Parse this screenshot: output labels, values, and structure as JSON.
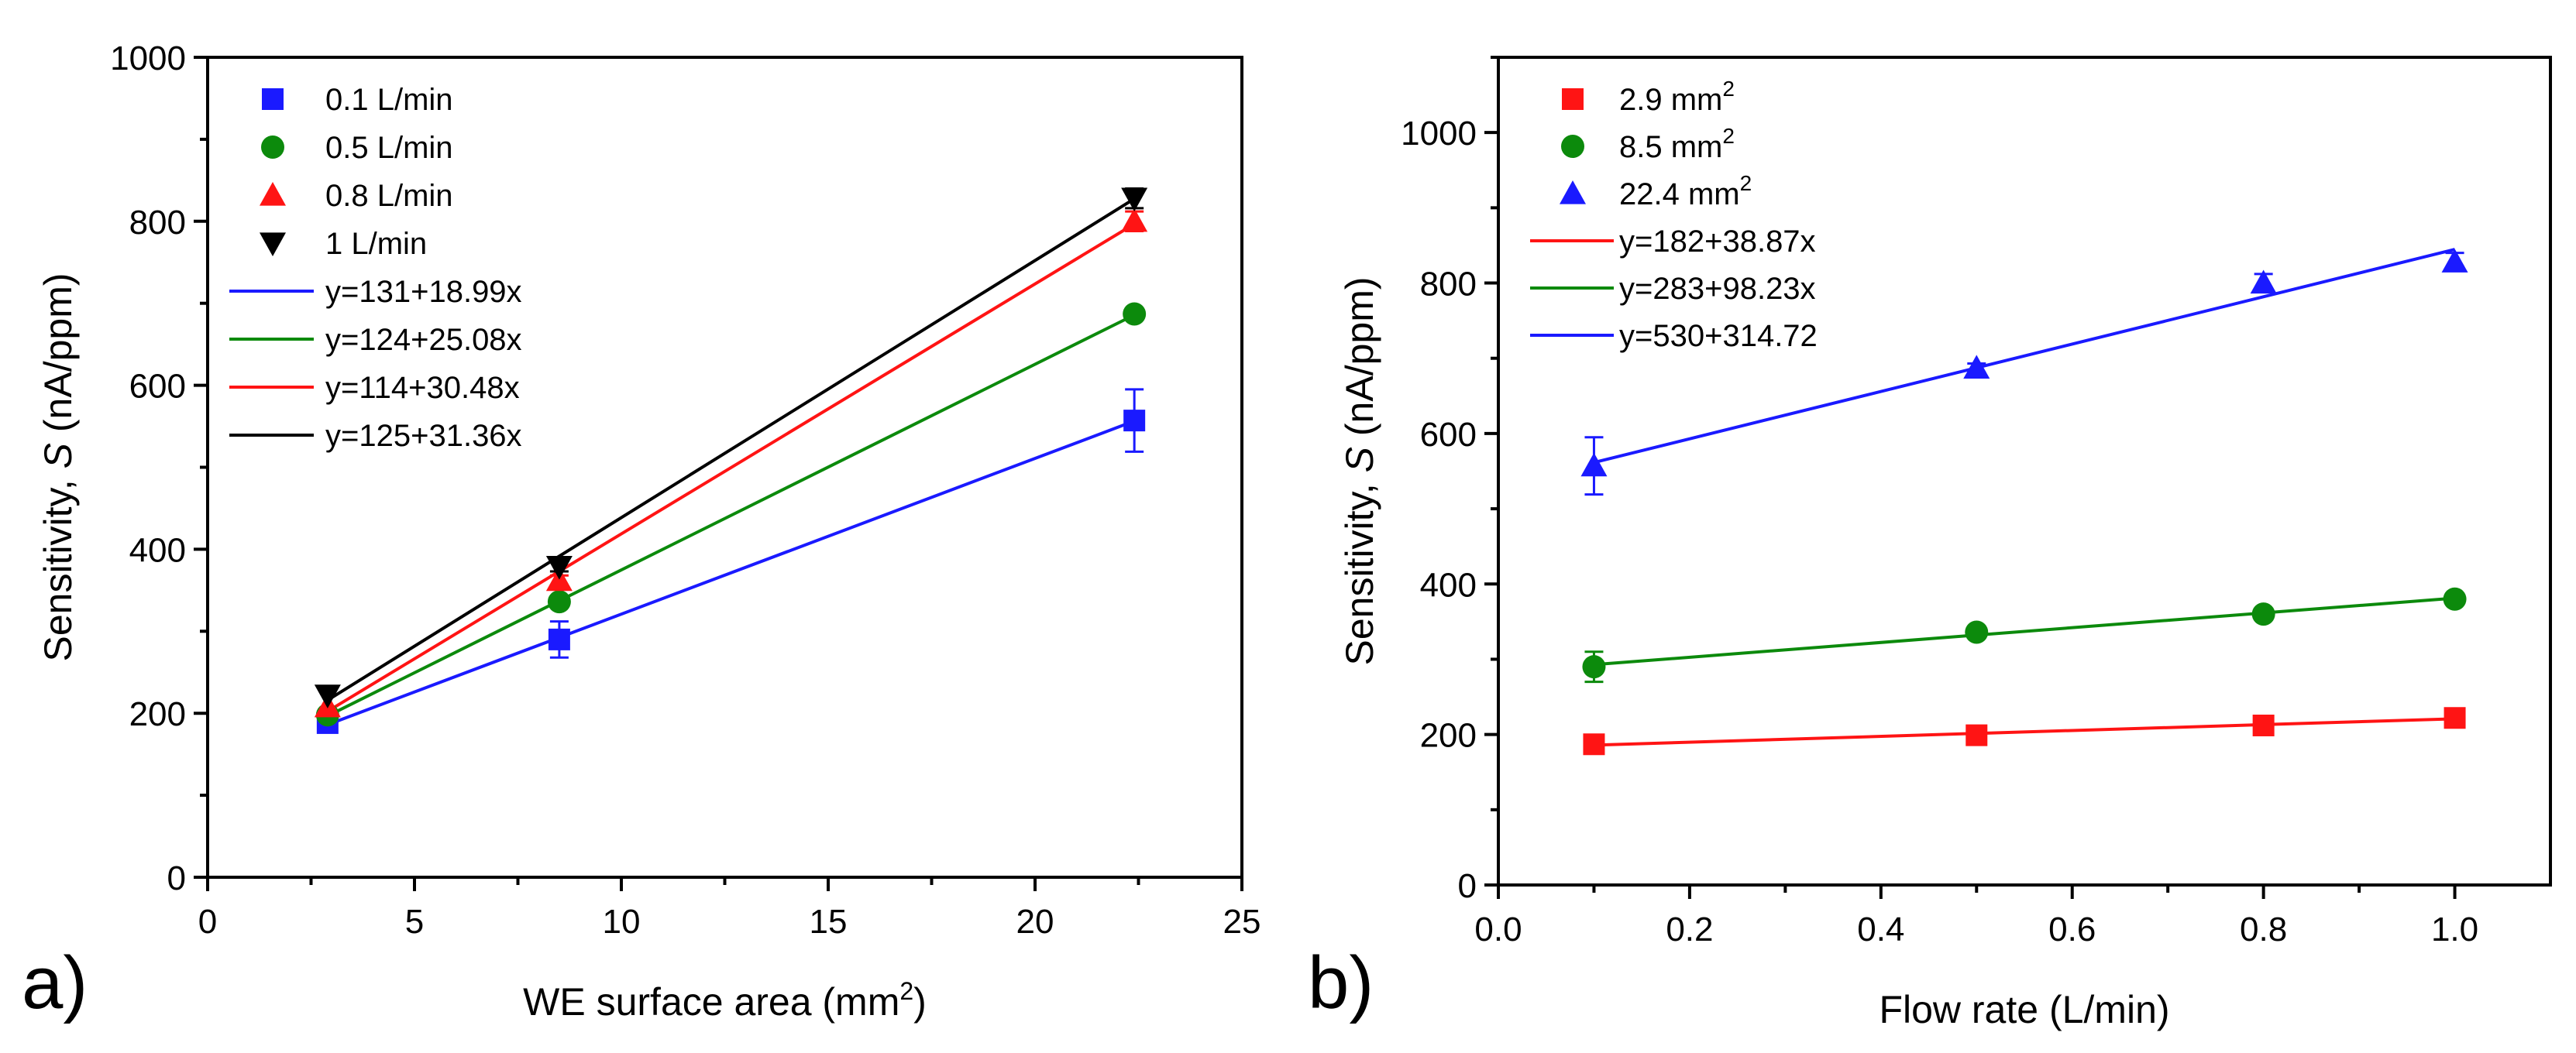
{
  "chart_data": [
    {
      "panel_label": "a)",
      "type": "scatter",
      "xlabel": {
        "prefix": "WE surface area (mm",
        "sup": "2",
        "suffix": ")"
      },
      "ylabel": {
        "prefix": "Sensitivity, ",
        "italic": "S",
        "suffix": " (nA/ppm)"
      },
      "xlim": [
        0,
        25
      ],
      "ylim": [
        0,
        1000
      ],
      "xticks": [
        0,
        5,
        10,
        15,
        20,
        25
      ],
      "yticks": [
        0,
        200,
        400,
        600,
        800,
        1000
      ],
      "xtick_labels": [
        "0",
        "5",
        "10",
        "15",
        "20",
        "25"
      ],
      "ytick_labels": [
        "0",
        "200",
        "400",
        "600",
        "800",
        "1000"
      ],
      "legend_position": "top-left",
      "series": [
        {
          "name": "0.1 L/min",
          "color": "#1a1aff",
          "marker": "square",
          "x": [
            2.9,
            8.5,
            22.4
          ],
          "y": [
            188,
            290,
            557
          ],
          "yerr": [
            4,
            22,
            38
          ]
        },
        {
          "name": "0.5 L/min",
          "color": "#0c8a0c",
          "marker": "circle",
          "x": [
            2.9,
            8.5,
            22.4
          ],
          "y": [
            198,
            336,
            687
          ],
          "yerr": [
            3,
            4,
            6
          ]
        },
        {
          "name": "0.8 L/min",
          "color": "#ff1414",
          "marker": "triangle-up",
          "x": [
            2.9,
            8.5,
            22.4
          ],
          "y": [
            208,
            362,
            800
          ],
          "yerr": [
            3,
            6,
            12
          ]
        },
        {
          "name": "1 L/min",
          "color": "#000000",
          "marker": "triangle-down",
          "x": [
            2.9,
            8.5,
            22.4
          ],
          "y": [
            222,
            379,
            828
          ],
          "yerr": [
            5,
            6,
            12
          ]
        }
      ],
      "fits": [
        {
          "label": "y=131+18.99x",
          "color": "#1a1aff",
          "intercept": 131,
          "slope": 18.99,
          "x_range": [
            2.9,
            22.4
          ]
        },
        {
          "label": "y=124+25.08x",
          "color": "#0c8a0c",
          "intercept": 124,
          "slope": 25.08,
          "x_range": [
            2.9,
            22.4
          ]
        },
        {
          "label": "y=114+30.48x",
          "color": "#ff1414",
          "intercept": 114,
          "slope": 30.48,
          "x_range": [
            2.9,
            22.4
          ]
        },
        {
          "label": "y=125+31.36x",
          "color": "#000000",
          "intercept": 125,
          "slope": 31.36,
          "x_range": [
            2.9,
            22.4
          ]
        }
      ]
    },
    {
      "panel_label": "b)",
      "type": "scatter",
      "xlabel": {
        "prefix": "Flow rate (L/min)",
        "sup": "",
        "suffix": ""
      },
      "ylabel": {
        "prefix": "Sensitivity, ",
        "italic": "S",
        "suffix": " (nA/ppm)"
      },
      "xlim": [
        0,
        1.1
      ],
      "ylim": [
        0,
        1100
      ],
      "xticks": [
        0,
        0.2,
        0.4,
        0.6,
        0.8,
        1.0
      ],
      "yticks": [
        0,
        200,
        400,
        600,
        800,
        1000
      ],
      "xtick_labels": [
        "0.0",
        "0.2",
        "0.4",
        "0.6",
        "0.8",
        "1.0"
      ],
      "ytick_labels": [
        "0",
        "200",
        "400",
        "600",
        "800",
        "1000"
      ],
      "legend_position": "top-left",
      "series": [
        {
          "name": "2.9 mm",
          "sup": "2",
          "color": "#ff1414",
          "marker": "square",
          "x": [
            0.1,
            0.5,
            0.8,
            1.0
          ],
          "y": [
            187,
            199,
            212,
            222
          ],
          "yerr": [
            3,
            3,
            3,
            3
          ]
        },
        {
          "name": "8.5 mm",
          "sup": "2",
          "color": "#0c8a0c",
          "marker": "circle",
          "x": [
            0.1,
            0.5,
            0.8,
            1.0
          ],
          "y": [
            290,
            336,
            360,
            380
          ],
          "yerr": [
            20,
            4,
            4,
            4
          ]
        },
        {
          "name": "22.4 mm",
          "sup": "2",
          "color": "#1a1aff",
          "marker": "triangle-up",
          "x": [
            0.1,
            0.5,
            0.8,
            1.0
          ],
          "y": [
            557,
            687,
            800,
            828
          ],
          "yerr": [
            38,
            6,
            12,
            12
          ]
        }
      ],
      "fits": [
        {
          "label": "y=182+38.87x",
          "color": "#ff1414",
          "intercept": 182,
          "slope": 38.87,
          "x_range": [
            0.1,
            1.0
          ]
        },
        {
          "label": "y=283+98.23x",
          "color": "#0c8a0c",
          "intercept": 283,
          "slope": 98.23,
          "x_range": [
            0.1,
            1.0
          ]
        },
        {
          "label": "y=530+314.72",
          "color": "#1a1aff",
          "intercept": 530,
          "slope": 314.72,
          "x_range": [
            0.1,
            1.0
          ]
        }
      ]
    }
  ]
}
